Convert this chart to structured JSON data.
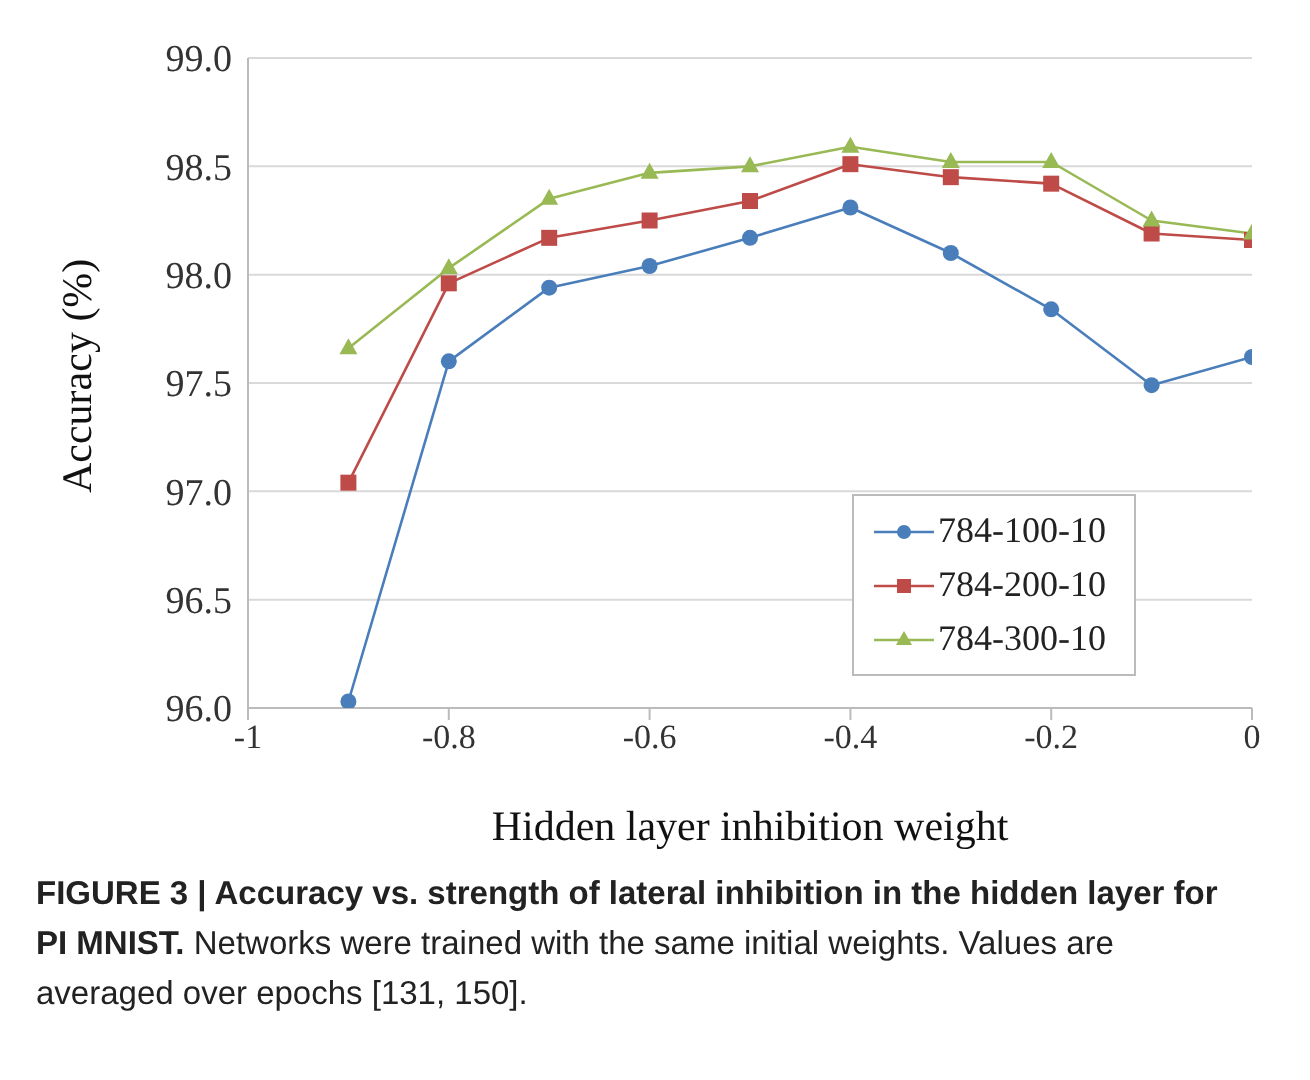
{
  "chart_data": {
    "type": "line",
    "title": "FIGURE 3 | Accuracy vs. strength of lateral inhibition in the hidden layer for PI MNIST.",
    "annotations": [
      "Networks were trained with the same initial weights. Values are averaged over epochs [131, 150]."
    ],
    "xlabel": "Hidden layer inhibition weight",
    "ylabel": "Accuracy (%)",
    "x": [
      -0.9,
      -0.8,
      -0.7,
      -0.6,
      -0.5,
      -0.4,
      -0.3,
      -0.2,
      -0.1,
      0
    ],
    "series": [
      {
        "name": "784-100-10",
        "color": "#4a7ebb",
        "marker": "circle",
        "values": [
          96.03,
          97.6,
          97.94,
          98.04,
          98.17,
          98.31,
          98.1,
          97.84,
          97.49,
          97.62
        ]
      },
      {
        "name": "784-200-10",
        "color": "#be4b48",
        "marker": "square",
        "values": [
          97.04,
          97.96,
          98.17,
          98.25,
          98.34,
          98.51,
          98.45,
          98.42,
          98.19,
          98.16
        ]
      },
      {
        "name": "784-300-10",
        "color": "#98b954",
        "marker": "triangle",
        "values": [
          97.66,
          98.03,
          98.35,
          98.47,
          98.5,
          98.59,
          98.52,
          98.52,
          98.25,
          98.19
        ]
      }
    ],
    "xlim": [
      -1,
      0
    ],
    "xticks": [
      -1,
      -0.8,
      -0.6,
      -0.4,
      -0.2,
      0
    ],
    "ylim": [
      96,
      99
    ],
    "yticks": [
      {
        "value": 96,
        "label": "96.0"
      },
      {
        "value": 96.5,
        "label": "96.5"
      },
      {
        "value": 97,
        "label": "97.0"
      },
      {
        "value": 97.5,
        "label": "97.5"
      },
      {
        "value": 98,
        "label": "98.0"
      },
      {
        "value": 98.5,
        "label": "98.5"
      },
      {
        "value": 99,
        "label": "99.0"
      }
    ],
    "grid": "y",
    "legend": "bottom right",
    "line_style": "solid"
  }
}
